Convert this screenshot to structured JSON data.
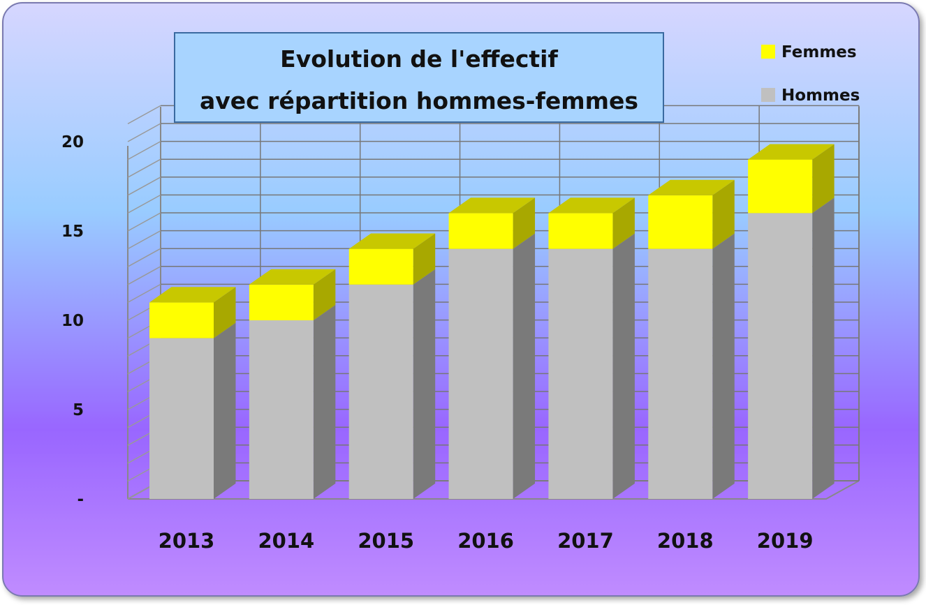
{
  "chart_data": {
    "type": "bar",
    "stacked": true,
    "three_d": true,
    "title_lines": [
      "Evolution de l'effectif",
      "avec répartition hommes-femmes"
    ],
    "categories": [
      "2013",
      "2014",
      "2015",
      "2016",
      "2017",
      "2018",
      "2019"
    ],
    "series": [
      {
        "name": "Hommes",
        "values": [
          9,
          10,
          12,
          14,
          14,
          14,
          16
        ],
        "color": "#c0c0c0",
        "side_color": "#7a7a7a",
        "top_color": "#9a9a9a"
      },
      {
        "name": "Femmes",
        "values": [
          2,
          2,
          2,
          2,
          2,
          3,
          3
        ],
        "color": "#ffff00",
        "side_color": "#a8a800",
        "top_color": "#c8c800"
      }
    ],
    "y_ticks": [
      {
        "value": 0,
        "label": "-"
      },
      {
        "value": 5,
        "label": "5"
      },
      {
        "value": 10,
        "label": "10"
      },
      {
        "value": 15,
        "label": "15"
      },
      {
        "value": 20,
        "label": "20"
      }
    ],
    "ylim": [
      0,
      21
    ],
    "grid": true,
    "legend_position": "top-right",
    "legend_order": [
      "Femmes",
      "Hommes"
    ],
    "background_gradient": [
      "#d6d6ff",
      "#99ccff",
      "#9966ff",
      "#c08cff"
    ]
  }
}
